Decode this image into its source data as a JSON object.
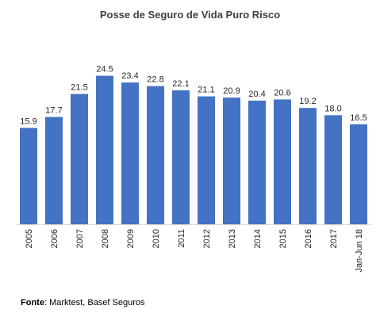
{
  "chart_data": {
    "type": "bar",
    "title": "Posse de Seguro de Vida Puro Risco",
    "categories": [
      "2005",
      "2006",
      "2007",
      "2008",
      "2009",
      "2010",
      "2011",
      "2012",
      "2013",
      "2014",
      "2015",
      "2016",
      "2017",
      "Jan-Jun 18"
    ],
    "values": [
      15.9,
      17.7,
      21.5,
      24.5,
      23.4,
      22.8,
      22.1,
      21.1,
      20.9,
      20.4,
      20.6,
      19.2,
      18.0,
      16.5
    ],
    "data_labels": [
      "15.9",
      "17.7",
      "21.5",
      "24.5",
      "23.4",
      "22.8",
      "22.1",
      "21.1",
      "20.9",
      "20.4",
      "20.6",
      "19.2",
      "18.0",
      "16.5"
    ],
    "xlabel": "",
    "ylabel": "",
    "ylim": [
      0,
      25.5
    ],
    "grid": false,
    "bar_color": "#4472C4",
    "axis_color": "#D9D9D9"
  },
  "footer": {
    "source_label": "Fonte",
    "source_text": ": Marktest, Basef Seguros"
  }
}
